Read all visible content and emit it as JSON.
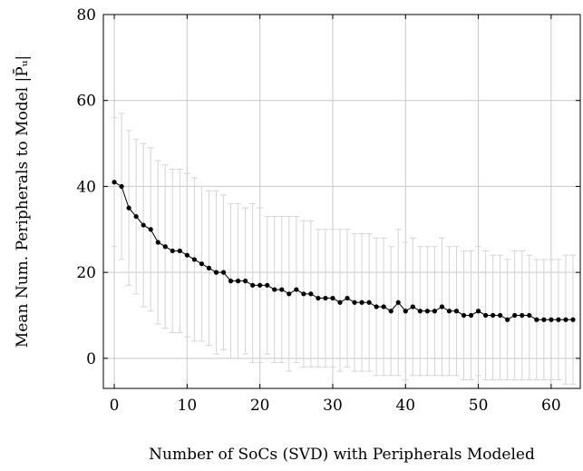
{
  "chart_data": {
    "type": "line",
    "title": "",
    "xlabel": "Number of SoCs (SVD) with Peripherals Modeled",
    "ylabel": "Mean Num. Peripherals to Model |P̄ᵤ|",
    "xlim": [
      -1.5,
      64
    ],
    "ylim": [
      -7,
      80
    ],
    "xticks": [
      0,
      10,
      20,
      30,
      40,
      50,
      60
    ],
    "yticks": [
      0,
      20,
      40,
      60,
      80
    ],
    "grid": true,
    "error_bars": true,
    "x": [
      0,
      1,
      2,
      3,
      4,
      5,
      6,
      7,
      8,
      9,
      10,
      11,
      12,
      13,
      14,
      15,
      16,
      17,
      18,
      19,
      20,
      21,
      22,
      23,
      24,
      25,
      26,
      27,
      28,
      29,
      30,
      31,
      32,
      33,
      34,
      35,
      36,
      37,
      38,
      39,
      40,
      41,
      42,
      43,
      44,
      45,
      46,
      47,
      48,
      49,
      50,
      51,
      52,
      53,
      54,
      55,
      56,
      57,
      58,
      59,
      60,
      61,
      62,
      63
    ],
    "series": [
      {
        "values": [
          41,
          40,
          35,
          33,
          31,
          30,
          27,
          26,
          25,
          25,
          24,
          23,
          22,
          21,
          20,
          20,
          18,
          18,
          18,
          17,
          17,
          17,
          16,
          16,
          15,
          16,
          15,
          15,
          14,
          14,
          14,
          13,
          14,
          13,
          13,
          13,
          12,
          12,
          11,
          13,
          11,
          12,
          11,
          11,
          11,
          12,
          11,
          11,
          10,
          10,
          11,
          10,
          10,
          10,
          9,
          10,
          10,
          10,
          9,
          9,
          9,
          9,
          9,
          9
        ],
        "error_upper": [
          56,
          57,
          53,
          51,
          50,
          49,
          46,
          45,
          44,
          44,
          43,
          42,
          40,
          39,
          39,
          38,
          36,
          36,
          35,
          36,
          35,
          33,
          33,
          33,
          33,
          33,
          32,
          32,
          30,
          30,
          30,
          30,
          30,
          29,
          29,
          29,
          28,
          28,
          26,
          30,
          27,
          28,
          26,
          26,
          26,
          28,
          26,
          26,
          25,
          25,
          26,
          25,
          24,
          24,
          23,
          25,
          25,
          24,
          23,
          23,
          23,
          23,
          24,
          24
        ],
        "error_lower": [
          26,
          23,
          17,
          15,
          12,
          11,
          8,
          7,
          6,
          6,
          5,
          4,
          4,
          3,
          1,
          2,
          0,
          0,
          1,
          -1,
          -1,
          1,
          -1,
          -1,
          -3,
          -1,
          -2,
          -2,
          -2,
          -2,
          -2,
          -3,
          -2,
          -3,
          -3,
          -3,
          -4,
          -4,
          -4,
          -4,
          -5,
          -4,
          -4,
          -4,
          -4,
          -4,
          -4,
          -4,
          -5,
          -5,
          -4,
          -5,
          -5,
          -5,
          -5,
          -5,
          -5,
          -5,
          -5,
          -5,
          -5,
          -5,
          -6,
          -6
        ]
      }
    ]
  }
}
